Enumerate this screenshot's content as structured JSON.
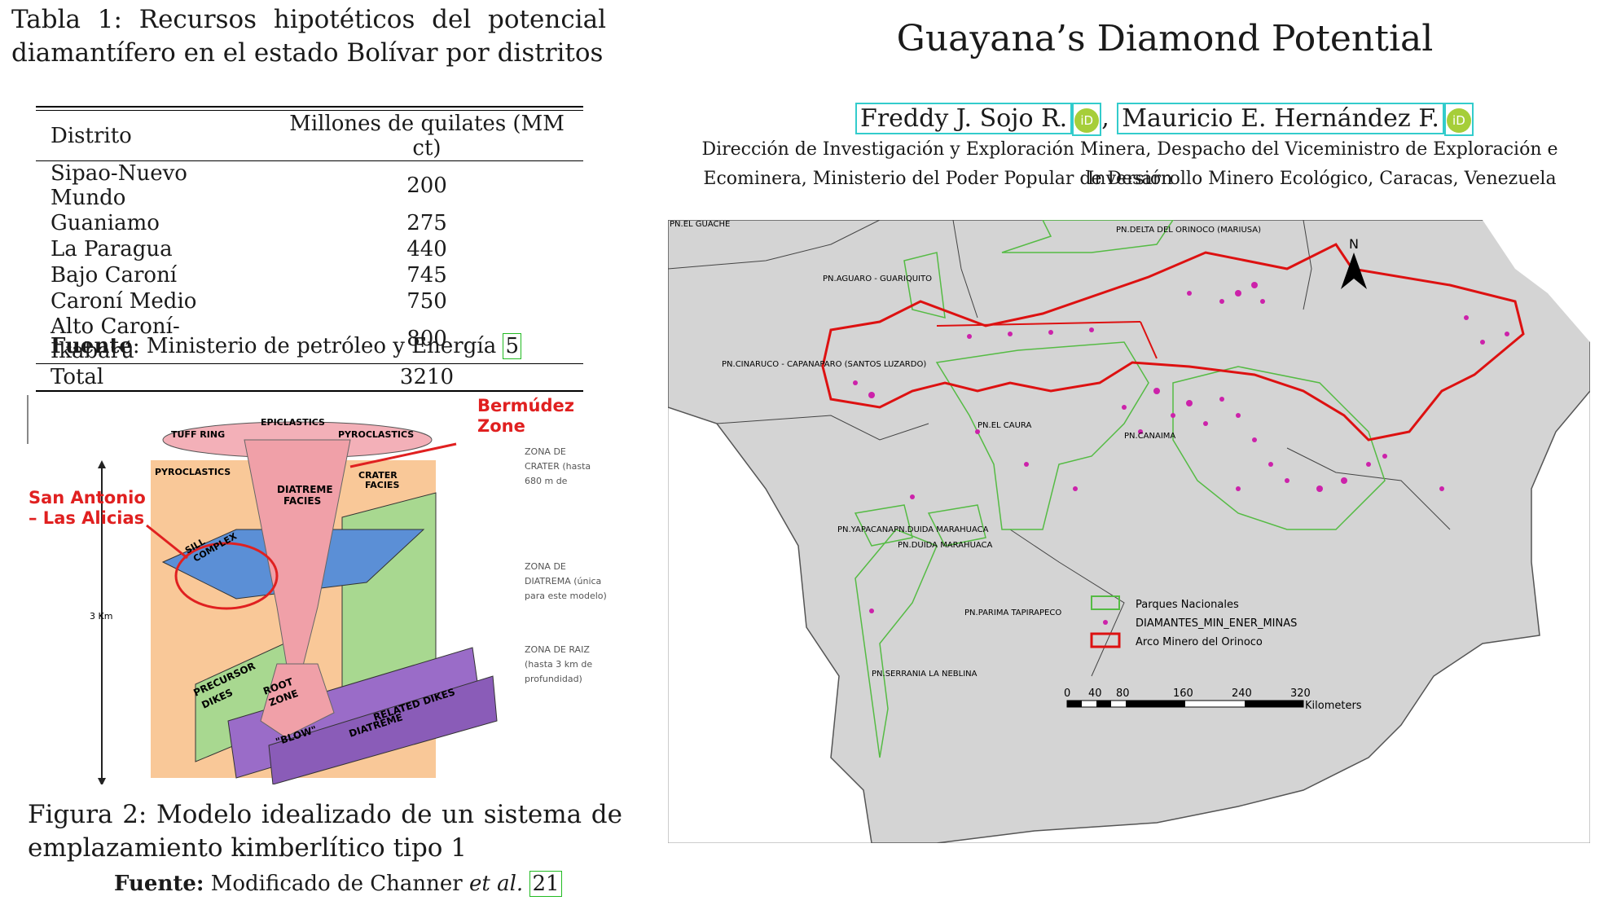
{
  "left": {
    "table_caption": "Tabla 1: Recursos hipotéticos del potencial diamantífero en el estado Bolívar por distritos",
    "table": {
      "headers": [
        "Distrito",
        "Millones de quilates (MM ct)"
      ],
      "rows": [
        {
          "district": "Sipao-Nuevo Mundo",
          "value": "200"
        },
        {
          "district": "Guaniamo",
          "value": "275"
        },
        {
          "district": "La Paragua",
          "value": "440"
        },
        {
          "district": "Bajo Caroní",
          "value": "745"
        },
        {
          "district": "Caroní Medio",
          "value": "750"
        },
        {
          "district": "Alto Caroní-Ikabarú",
          "value": "800"
        }
      ],
      "total_label": "Total",
      "total_value": "3210"
    },
    "table_source_label": "Fuente",
    "table_source_text": ": Ministerio de petróleo y Energía ",
    "table_source_ref": "5",
    "figure": {
      "labels": {
        "epiclastics": "EPICLASTICS",
        "tuff_ring": "TUFF RING",
        "pyroclastics_top": "PYROCLASTICS",
        "pyroclastics_left": "PYROCLASTICS",
        "crater_facies_1": "CRATER",
        "crater_facies_2": "FACIES",
        "diatreme_1": "DIATREME",
        "diatreme_2": "FACIES",
        "sill_1": "SILL",
        "sill_2": "COMPLEX",
        "precursor_1": "PRECURSOR",
        "precursor_2": "DIKES",
        "root_1": "ROOT",
        "root_2": "ZONE",
        "blow": "\"BLOW\"",
        "diatreme_related": "DIATREME",
        "related_dikes": "RELATED DIKES",
        "depth": "3 Km"
      },
      "annotations": {
        "bermudez_1": "Bermúdez",
        "bermudez_2": "Zone",
        "san_antonio_1": "San Antonio",
        "san_antonio_2": "– Las Alicias"
      },
      "zones": {
        "crater_1": "ZONA DE",
        "crater_2": "CRATER (hasta",
        "crater_3": "680 m de",
        "diatreme_1": "ZONA DE",
        "diatreme_2": "DIATREMA (única",
        "diatreme_3": "para este modelo)",
        "root_1": "ZONA DE RAIZ",
        "root_2": "(hasta 3 km de",
        "root_3": "profundidad)"
      }
    },
    "figure_caption": "Figura 2: Modelo idealizado de un sistema de emplazamiento kimberlítico tipo 1",
    "figure_source_label": "Fuente:",
    "figure_source_text": " Modificado de Channer ",
    "figure_source_etal": "et al.",
    "figure_source_ref": "21"
  },
  "right": {
    "title": "Guayana’s Diamond Potential",
    "author1": "Freddy J. Sojo R.",
    "author2": "Mauricio E. Hernández F.",
    "orcid_glyph": "iD",
    "affil_line1": "Dirección de Investigación y Exploración Minera, Despacho del Viceministro de Exploración e Inversión",
    "affil_line2": "Ecominera, Ministerio del Poder Popular de Desarrollo Minero Ecológico, Caracas, Venezuela",
    "map": {
      "north": "N",
      "parks": [
        "PN.EL GUACHE",
        "PN.DELTA DEL ORINOCO (MARIUSA)",
        "PN.AGUARO - GUARIQUITO",
        "PN.CINARUCO - CAPANAPARO (SANTOS LUZARDO)",
        "PN.EL CAURA",
        "PN.CANAIMA",
        "PN.YAPACANAPN.DUIDA MARAHUACA",
        "PN.DUIDA MARAHUACA",
        "PN.PARIMA TAPIRAPECO",
        "PN.SERRANIA LA NEBLINA"
      ],
      "legend": {
        "parks": "Parques Nacionales",
        "diamonds": "DIAMANTES_MIN_ENER_MINAS",
        "arco": "Arco Minero del Orinoco"
      },
      "scale_ticks": [
        "0",
        "40",
        "80",
        "160",
        "240",
        "320"
      ],
      "scale_unit": "Kilometers"
    }
  },
  "colors": {
    "map_land": "#d4d4d4",
    "park_border": "#55bb44",
    "arco_border": "#dd1111",
    "diamond": "#cc22aa",
    "annotation_red": "#e02020",
    "figure_orange": "#f9c898",
    "figure_green": "#a8d890",
    "figure_blue": "#5b8fd6",
    "figure_purple": "#9a6cc8",
    "figure_pink": "#f0a0a8"
  }
}
